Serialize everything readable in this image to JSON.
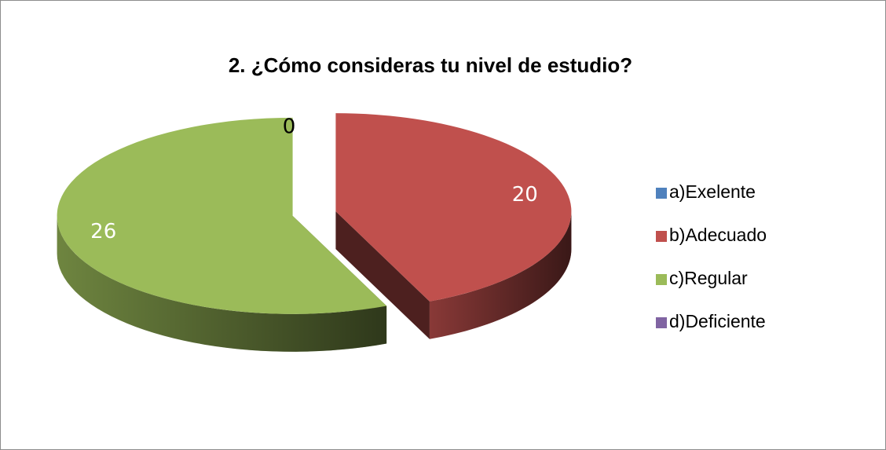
{
  "chart_data": {
    "type": "pie3d",
    "title": "2. ¿Cómo consideras tu nivel de estudio?",
    "categories": [
      "a)Exelente",
      "b)Adecuado",
      "c)Regular",
      "d)Deficiente"
    ],
    "values": [
      0,
      20,
      26,
      0
    ],
    "colors": [
      "#4f81bd",
      "#c0504d",
      "#9bbb59",
      "#8064a2"
    ],
    "legend": "right"
  }
}
